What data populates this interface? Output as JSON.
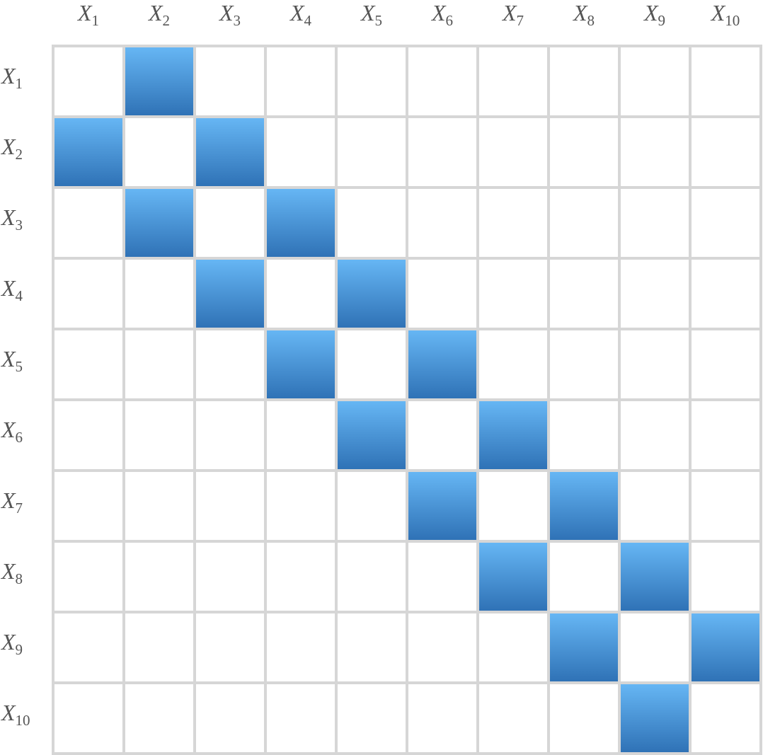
{
  "columns": [
    {
      "letter": "X",
      "subscript": "1"
    },
    {
      "letter": "X",
      "subscript": "2"
    },
    {
      "letter": "X",
      "subscript": "3"
    },
    {
      "letter": "X",
      "subscript": "4"
    },
    {
      "letter": "X",
      "subscript": "5"
    },
    {
      "letter": "X",
      "subscript": "6"
    },
    {
      "letter": "X",
      "subscript": "7"
    },
    {
      "letter": "X",
      "subscript": "8"
    },
    {
      "letter": "X",
      "subscript": "9"
    },
    {
      "letter": "X",
      "subscript": "10"
    }
  ],
  "rows": [
    {
      "letter": "X",
      "subscript": "1"
    },
    {
      "letter": "X",
      "subscript": "2"
    },
    {
      "letter": "X",
      "subscript": "3"
    },
    {
      "letter": "X",
      "subscript": "4"
    },
    {
      "letter": "X",
      "subscript": "5"
    },
    {
      "letter": "X",
      "subscript": "6"
    },
    {
      "letter": "X",
      "subscript": "7"
    },
    {
      "letter": "X",
      "subscript": "8"
    },
    {
      "letter": "X",
      "subscript": "9"
    },
    {
      "letter": "X",
      "subscript": "10"
    }
  ],
  "matrix": [
    [
      0,
      1,
      0,
      0,
      0,
      0,
      0,
      0,
      0,
      0
    ],
    [
      1,
      0,
      1,
      0,
      0,
      0,
      0,
      0,
      0,
      0
    ],
    [
      0,
      1,
      0,
      1,
      0,
      0,
      0,
      0,
      0,
      0
    ],
    [
      0,
      0,
      1,
      0,
      1,
      0,
      0,
      0,
      0,
      0
    ],
    [
      0,
      0,
      0,
      1,
      0,
      1,
      0,
      0,
      0,
      0
    ],
    [
      0,
      0,
      0,
      0,
      1,
      0,
      1,
      0,
      0,
      0
    ],
    [
      0,
      0,
      0,
      0,
      0,
      1,
      0,
      1,
      0,
      0
    ],
    [
      0,
      0,
      0,
      0,
      0,
      0,
      1,
      0,
      1,
      0
    ],
    [
      0,
      0,
      0,
      0,
      0,
      0,
      0,
      1,
      0,
      1
    ],
    [
      0,
      0,
      0,
      0,
      0,
      0,
      0,
      0,
      1,
      0
    ]
  ]
}
